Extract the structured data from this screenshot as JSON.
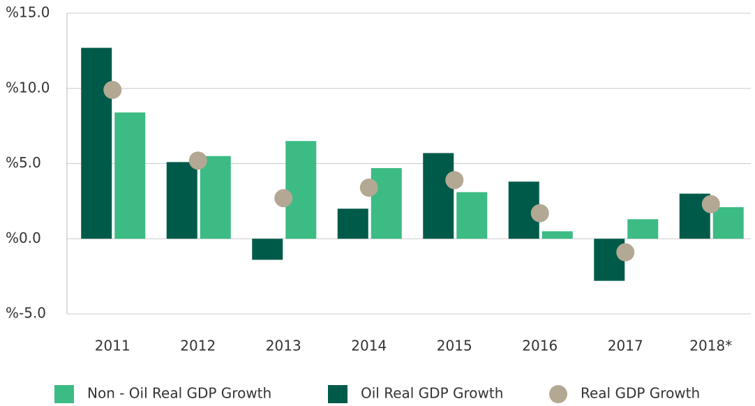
{
  "chart_data": {
    "type": "bar",
    "categories": [
      "2011",
      "2012",
      "2013",
      "2014",
      "2015",
      "2016",
      "2017",
      "2018*"
    ],
    "series": [
      {
        "name": "Non - Oil Real GDP Growth",
        "color": "#3dbb84",
        "values": [
          8.4,
          5.5,
          6.5,
          4.7,
          3.1,
          0.5,
          1.3,
          2.1
        ]
      },
      {
        "name": "Oil Real GDP Growth",
        "color": "#005a4a",
        "values": [
          12.7,
          5.1,
          -1.4,
          2.0,
          5.7,
          3.8,
          -2.8,
          3.0
        ]
      },
      {
        "name": "Real GDP Growth",
        "color": "#b3a893",
        "type": "scatter",
        "values": [
          9.9,
          5.2,
          2.7,
          3.4,
          3.9,
          1.7,
          -0.9,
          2.3
        ]
      }
    ],
    "ylim": [
      -5,
      15
    ],
    "yticks": [
      {
        "value": 15,
        "label": "%15.0"
      },
      {
        "value": 10,
        "label": "%10.0"
      },
      {
        "value": 5,
        "label": "%5.0"
      },
      {
        "value": 0,
        "label": "%0.0"
      },
      {
        "value": -5,
        "label": "%-5.0"
      }
    ],
    "grid": true
  }
}
